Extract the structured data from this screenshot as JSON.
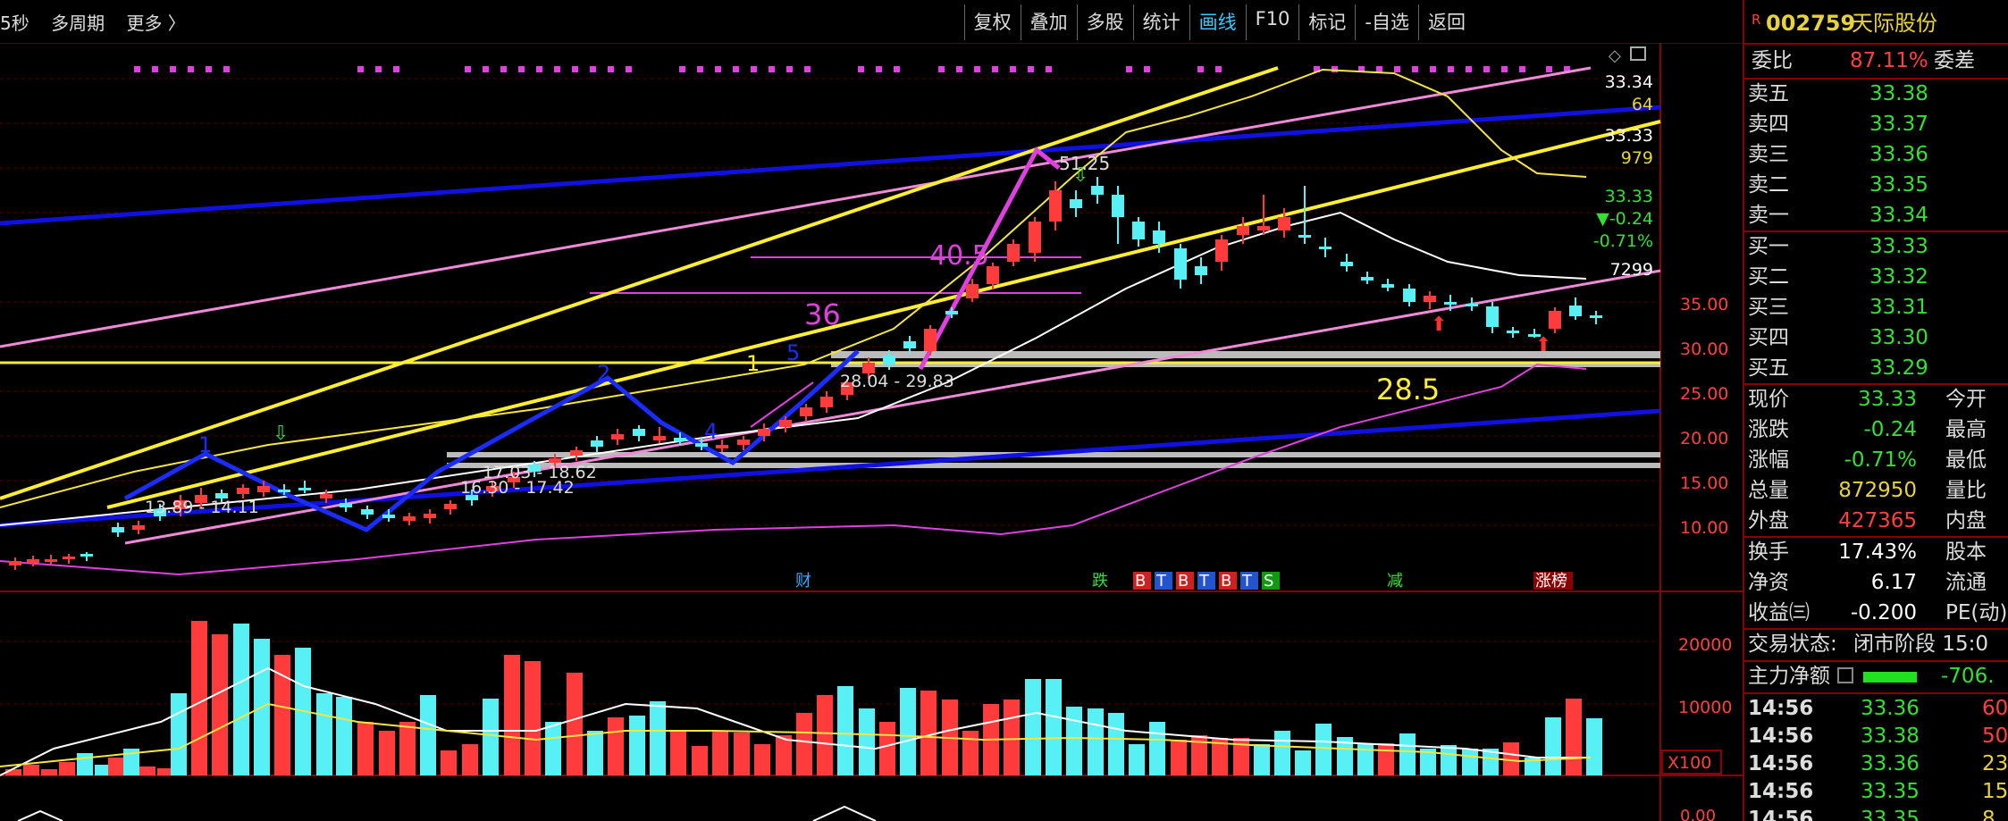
{
  "top": {
    "tabs": [
      "5秒",
      "多周期",
      "更多 〉"
    ],
    "toolbar": [
      "复权",
      "叠加",
      "多股",
      "统计",
      "画线",
      "F10",
      "标记",
      "-自选",
      "返回"
    ],
    "active_tool": "画线"
  },
  "chart": {
    "price_axis": [
      "35.00",
      "30.00",
      "25.00",
      "20.00",
      "15.00",
      "10.00"
    ],
    "right_axis_values": [
      {
        "text": "33.34",
        "color": "#ffffff"
      },
      {
        "text": "64",
        "color": "#e8d23a"
      },
      {
        "text": "33.33",
        "color": "#ffffff"
      },
      {
        "text": "979",
        "color": "#e8d23a"
      },
      {
        "text": "33.33",
        "color": "#33e033"
      },
      {
        "text": "▼-0.24",
        "color": "#33e033"
      },
      {
        "text": "-0.71%",
        "color": "#33e033"
      },
      {
        "text": "7299",
        "color": "#ffffff"
      }
    ],
    "annotations": {
      "high_label": "51.25",
      "n40": "40.5",
      "n36": "36",
      "n285": "28.5",
      "n1a": "1",
      "n5": "5",
      "n2": "2",
      "n1b": "1",
      "n4": "4",
      "zone1": "28.04 - 29.83",
      "zone2": "17.03 - 18.62",
      "zone3": "16.30 - 17.42",
      "zone4": "13.89 - 14.11"
    },
    "event_markers": [
      "财",
      "跌",
      "B",
      "T",
      "B",
      "T",
      "B",
      "T",
      "S",
      "减",
      "涨榜"
    ],
    "volume_axis": [
      "20000",
      "10000",
      "X100"
    ],
    "macd_axis": "0.00",
    "colors": {
      "up": "#ff3b3b",
      "down": "#56f0f5",
      "ma_white": "#ffffff",
      "ma_yellow": "#f4e542",
      "magenta": "#e040e0",
      "blue_line": "#1010e0",
      "pink_line": "#f08ad8",
      "yellow_line": "#ffee33"
    }
  },
  "stock": {
    "code": "002759",
    "name": "天际股份",
    "flag": "R"
  },
  "order_book": {
    "ratio_label": "委比",
    "ratio": "87.11%",
    "diff_label": "委差",
    "asks": [
      {
        "label": "卖五",
        "price": "33.38"
      },
      {
        "label": "卖四",
        "price": "33.37"
      },
      {
        "label": "卖三",
        "price": "33.36"
      },
      {
        "label": "卖二",
        "price": "33.35"
      },
      {
        "label": "卖一",
        "price": "33.34"
      }
    ],
    "bids": [
      {
        "label": "买一",
        "price": "33.33"
      },
      {
        "label": "买二",
        "price": "33.32"
      },
      {
        "label": "买三",
        "price": "33.31"
      },
      {
        "label": "买四",
        "price": "33.30"
      },
      {
        "label": "买五",
        "price": "33.29"
      }
    ]
  },
  "quote": [
    {
      "label": "现价",
      "value": "33.33",
      "color": "#33e033",
      "label2": "今开"
    },
    {
      "label": "涨跌",
      "value": "-0.24",
      "color": "#33e033",
      "label2": "最高"
    },
    {
      "label": "涨幅",
      "value": "-0.71%",
      "color": "#33e033",
      "label2": "最低"
    },
    {
      "label": "总量",
      "value": "872950",
      "color": "#e8d23a",
      "label2": "量比"
    },
    {
      "label": "外盘",
      "value": "427365",
      "color": "#ff4040",
      "label2": "内盘"
    }
  ],
  "fundamentals": [
    {
      "label": "换手",
      "value": "17.43%",
      "label2": "股本"
    },
    {
      "label": "净资",
      "value": "6.17",
      "label2": "流通"
    },
    {
      "label": "收益㈢",
      "value": "-0.200",
      "label2": "PE(动)"
    }
  ],
  "trade_status": {
    "label": "交易状态:",
    "value": "闭市阶段 15:0"
  },
  "main_flow": {
    "label": "主力净额",
    "value": "-706."
  },
  "ticks": [
    {
      "time": "14:56",
      "price": "33.36",
      "vol": "60"
    },
    {
      "time": "14:56",
      "price": "33.38",
      "vol": "50"
    },
    {
      "time": "14:56",
      "price": "33.36",
      "vol": "23"
    },
    {
      "time": "14:56",
      "price": "33.35",
      "vol": "15"
    },
    {
      "time": "14:56",
      "price": "33.35",
      "vol": "8"
    }
  ]
}
